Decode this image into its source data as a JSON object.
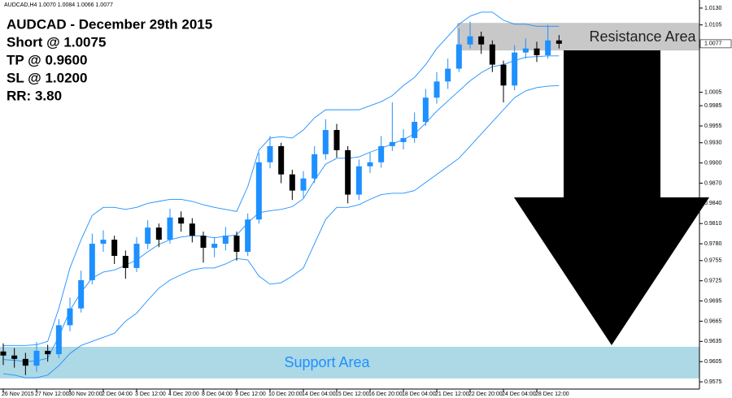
{
  "chart_data": {
    "type": "candlestick",
    "symbol_info": "AUDCAD,H4  1.0070 1.0084 1.0066 1.0077",
    "title": "AUDCAD - December 29th 2015",
    "notes": [
      "Short @ 1.0075",
      "TP @ 0.9600",
      "SL @ 1.0200",
      "RR: 3.80"
    ],
    "categories": [
      "26 Nov 2015",
      null,
      null,
      "27 Nov 12:00",
      null,
      null,
      "30 Nov 20:00",
      null,
      null,
      "2 Dec 04:00",
      null,
      null,
      "3 Dec 12:00",
      null,
      null,
      "4 Dec 20:00",
      null,
      null,
      "8 Dec 04:00",
      null,
      null,
      "9 Dec 12:00",
      null,
      null,
      "10 Dec 20:00",
      null,
      null,
      "14 Dec 04:00",
      null,
      null,
      "15 Dec 12:00",
      null,
      null,
      "16 Dec 20:00",
      null,
      null,
      "18 Dec 04:00",
      null,
      null,
      "21 Dec 12:00",
      null,
      null,
      "22 Dec 20:00",
      null,
      null,
      "24 Dec 04:00",
      null,
      null,
      "28 Dec 12:00",
      null,
      null
    ],
    "candles": {
      "up_color": "#1e90ff",
      "down_color": "#000000",
      "open": [
        0.962,
        0.9614,
        0.9609,
        0.9599,
        0.9621,
        0.9616,
        0.9659,
        0.9684,
        0.9726,
        0.978,
        0.9786,
        0.9762,
        0.9744,
        0.978,
        0.9804,
        0.9786,
        0.9819,
        0.981,
        0.9792,
        0.9774,
        0.978,
        0.9792,
        0.9768,
        0.9816,
        0.9901,
        0.9925,
        0.9883,
        0.9859,
        0.9877,
        0.9913,
        0.9949,
        0.9919,
        0.9853,
        0.9895,
        0.9901,
        0.9925,
        0.9931,
        0.9937,
        0.9961,
        0.9997,
        1.0021,
        1.004,
        1.0076,
        1.0088,
        1.0076,
        1.0046,
        1.0015,
        1.0064,
        1.007,
        1.006,
        1.0082
      ],
      "high": [
        0.9632,
        0.9625,
        0.9618,
        0.9634,
        0.963,
        0.9668,
        0.97,
        0.974,
        0.9795,
        0.98,
        0.9792,
        0.977,
        0.979,
        0.9815,
        0.981,
        0.9832,
        0.9828,
        0.9818,
        0.9798,
        0.979,
        0.9805,
        0.9798,
        0.9825,
        0.9915,
        0.994,
        0.993,
        0.989,
        0.9888,
        0.9925,
        0.9965,
        0.9958,
        0.9925,
        0.9905,
        0.9915,
        0.994,
        0.999,
        0.995,
        0.9975,
        1.001,
        1.0035,
        1.0055,
        1.01,
        1.011,
        1.0095,
        1.0082,
        1.0052,
        1.0075,
        1.0085,
        1.008,
        1.0105,
        1.009
      ],
      "low": [
        0.96,
        0.9596,
        0.9585,
        0.959,
        0.9605,
        0.961,
        0.965,
        0.9678,
        0.972,
        0.9768,
        0.975,
        0.9728,
        0.9738,
        0.9772,
        0.9775,
        0.978,
        0.9798,
        0.9782,
        0.9752,
        0.976,
        0.977,
        0.9755,
        0.9762,
        0.981,
        0.9892,
        0.987,
        0.9845,
        0.9848,
        0.987,
        0.9905,
        0.9908,
        0.984,
        0.9845,
        0.9885,
        0.9893,
        0.9918,
        0.992,
        0.993,
        0.9955,
        0.9988,
        1.001,
        1.0035,
        1.007,
        1.0062,
        1.0035,
        0.999,
        1.0008,
        1.0055,
        1.005,
        1.0055,
        1.007
      ],
      "close": [
        0.9614,
        0.9609,
        0.9599,
        0.9621,
        0.9616,
        0.9659,
        0.9684,
        0.9726,
        0.978,
        0.9786,
        0.9762,
        0.9744,
        0.978,
        0.9804,
        0.9786,
        0.9819,
        0.981,
        0.9792,
        0.9774,
        0.978,
        0.9792,
        0.9768,
        0.9816,
        0.9901,
        0.9925,
        0.9883,
        0.9859,
        0.9877,
        0.9913,
        0.9949,
        0.9919,
        0.9853,
        0.9895,
        0.9901,
        0.9925,
        0.9931,
        0.9937,
        0.9961,
        0.9997,
        1.0021,
        1.004,
        1.0076,
        1.0088,
        1.0076,
        1.0046,
        1.0015,
        1.0064,
        1.007,
        1.006,
        1.0082,
        1.0077
      ]
    },
    "bands": {
      "color": "#1e90ff",
      "upper": [
        0.9629,
        0.9629,
        0.9629,
        0.963,
        0.9635,
        0.9684,
        0.9744,
        0.9786,
        0.9822,
        0.9834,
        0.9834,
        0.9831,
        0.9834,
        0.984,
        0.9843,
        0.9846,
        0.9846,
        0.9843,
        0.9838,
        0.9834,
        0.9831,
        0.9828,
        0.9865,
        0.9919,
        0.9937,
        0.9939,
        0.9937,
        0.9949,
        0.9967,
        0.9979,
        0.9979,
        0.9979,
        0.9979,
        0.9985,
        0.9991,
        1.0,
        1.0015,
        1.0027,
        1.0046,
        1.007,
        1.0088,
        1.0106,
        1.0118,
        1.0124,
        1.0124,
        1.0112,
        1.0106,
        1.0106,
        1.0103,
        1.0103,
        1.0103
      ],
      "middle": [
        0.9608,
        0.9607,
        0.9605,
        0.9606,
        0.961,
        0.9642,
        0.9681,
        0.9708,
        0.9729,
        0.9738,
        0.9741,
        0.9748,
        0.9756,
        0.9768,
        0.9779,
        0.9786,
        0.979,
        0.9792,
        0.9791,
        0.9789,
        0.9791,
        0.9793,
        0.9811,
        0.9826,
        0.9829,
        0.9831,
        0.9835,
        0.9847,
        0.9874,
        0.9898,
        0.9907,
        0.9907,
        0.9909,
        0.9916,
        0.9922,
        0.9928,
        0.9935,
        0.9943,
        0.9959,
        0.9977,
        0.9992,
        1.0007,
        1.0022,
        1.0034,
        1.0043,
        1.0046,
        1.0052,
        1.0057,
        1.0058,
        1.0059,
        1.0059
      ],
      "lower": [
        0.9587,
        0.9585,
        0.9581,
        0.9581,
        0.9585,
        0.9599,
        0.9617,
        0.9629,
        0.9635,
        0.9641,
        0.9647,
        0.9665,
        0.9677,
        0.9696,
        0.9714,
        0.9726,
        0.9734,
        0.9741,
        0.9744,
        0.9744,
        0.975,
        0.9758,
        0.9756,
        0.9732,
        0.972,
        0.9722,
        0.9732,
        0.9744,
        0.978,
        0.9816,
        0.9834,
        0.9834,
        0.9838,
        0.9846,
        0.9853,
        0.9855,
        0.9855,
        0.9859,
        0.9871,
        0.9883,
        0.9895,
        0.9907,
        0.9925,
        0.9943,
        0.9961,
        0.9979,
        0.9997,
        1.0007,
        1.0012,
        1.0014,
        1.0015
      ]
    },
    "zones": [
      {
        "label": "Resistance Area",
        "from": 1.0067,
        "to": 1.0108,
        "color": "#c8c8c8",
        "text_color": "#222222"
      },
      {
        "label": "Support Area",
        "from": 0.958,
        "to": 0.9627,
        "color": "#add8e6",
        "text_color": "#1e90ff"
      }
    ],
    "last_price": 1.0077,
    "ylim": [
      0.9563,
      1.0142
    ],
    "yticks": [
      {
        "value": 1.013,
        "label": "1.0130"
      },
      1.0105,
      1.0005,
      0.9985,
      0.9955,
      {
        "value": 0.993,
        "label": "0.9930"
      },
      {
        "value": 0.99,
        "label": "0.9900"
      },
      {
        "value": 0.987,
        "label": "0.9870"
      },
      {
        "value": 0.984,
        "label": "0.9840"
      },
      {
        "value": 0.981,
        "label": "0.9810"
      },
      {
        "value": 0.978,
        "label": "0.9780"
      },
      0.9755,
      0.9725,
      0.9695,
      0.9665,
      0.9635,
      0.9605,
      0.9575
    ]
  }
}
